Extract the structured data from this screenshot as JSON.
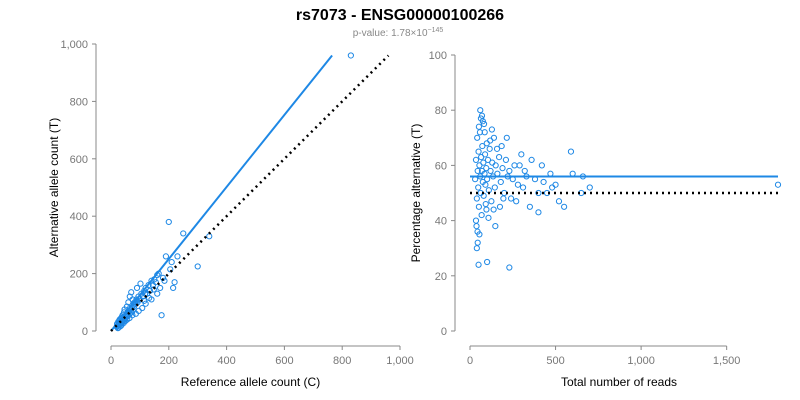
{
  "figure": {
    "title": "rs7073 - ENSG00000100266",
    "subtitle_prefix": "p-value: 1.78×10",
    "subtitle_exponent": "−145"
  },
  "colors": {
    "points": "#1e88e5",
    "fit_line": "#1e88e5",
    "reference_line": "#000000"
  },
  "chart_data": [
    {
      "type": "scatter",
      "title": "",
      "xlabel": "Reference allele count (C)",
      "ylabel": "Alternative allele count (T)",
      "xlim": [
        0,
        1000
      ],
      "ylim": [
        0,
        1000
      ],
      "xticks": [
        0,
        200,
        400,
        600,
        800,
        1000
      ],
      "xtick_labels": [
        "0",
        "200",
        "400",
        "600",
        "800",
        "1,000"
      ],
      "yticks": [
        0,
        200,
        400,
        600,
        800,
        1000
      ],
      "ytick_labels": [
        "0",
        "200",
        "400",
        "600",
        "800",
        "1,000"
      ],
      "grid": false,
      "points": [
        [
          20,
          15
        ],
        [
          22,
          18
        ],
        [
          25,
          20
        ],
        [
          28,
          25
        ],
        [
          30,
          22
        ],
        [
          33,
          30
        ],
        [
          35,
          28
        ],
        [
          38,
          35
        ],
        [
          40,
          30
        ],
        [
          42,
          40
        ],
        [
          45,
          38
        ],
        [
          48,
          45
        ],
        [
          50,
          42
        ],
        [
          52,
          55
        ],
        [
          55,
          50
        ],
        [
          58,
          60
        ],
        [
          60,
          55
        ],
        [
          62,
          70
        ],
        [
          65,
          60
        ],
        [
          68,
          75
        ],
        [
          70,
          65
        ],
        [
          72,
          80
        ],
        [
          75,
          70
        ],
        [
          78,
          90
        ],
        [
          80,
          85
        ],
        [
          82,
          100
        ],
        [
          85,
          95
        ],
        [
          88,
          110
        ],
        [
          90,
          105
        ],
        [
          95,
          120
        ],
        [
          100,
          110
        ],
        [
          105,
          130
        ],
        [
          110,
          120
        ],
        [
          115,
          140
        ],
        [
          120,
          150
        ],
        [
          125,
          130
        ],
        [
          130,
          160
        ],
        [
          135,
          140
        ],
        [
          140,
          175
        ],
        [
          145,
          160
        ],
        [
          150,
          180
        ],
        [
          155,
          170
        ],
        [
          160,
          195
        ],
        [
          170,
          150
        ],
        [
          180,
          185
        ],
        [
          190,
          260
        ],
        [
          200,
          380
        ],
        [
          210,
          240
        ],
        [
          220,
          170
        ],
        [
          230,
          260
        ],
        [
          250,
          340
        ],
        [
          300,
          225
        ],
        [
          340,
          330
        ],
        [
          830,
          960
        ],
        [
          60,
          100
        ],
        [
          45,
          65
        ],
        [
          40,
          55
        ],
        [
          35,
          45
        ],
        [
          30,
          40
        ],
        [
          25,
          32
        ],
        [
          24,
          10
        ],
        [
          26,
          12
        ],
        [
          32,
          16
        ],
        [
          36,
          20
        ],
        [
          44,
          28
        ],
        [
          50,
          35
        ],
        [
          56,
          40
        ],
        [
          64,
          45
        ],
        [
          74,
          55
        ],
        [
          86,
          60
        ],
        [
          96,
          70
        ],
        [
          108,
          80
        ],
        [
          120,
          95
        ],
        [
          140,
          110
        ],
        [
          160,
          130
        ],
        [
          175,
          55
        ],
        [
          115,
          105
        ],
        [
          65,
          120
        ],
        [
          75,
          110
        ],
        [
          90,
          150
        ],
        [
          102,
          165
        ],
        [
          118,
          130
        ],
        [
          132,
          115
        ],
        [
          148,
          145
        ],
        [
          165,
          200
        ],
        [
          185,
          175
        ],
        [
          205,
          215
        ],
        [
          215,
          150
        ],
        [
          70,
          135
        ],
        [
          55,
          85
        ],
        [
          47,
          75
        ],
        [
          38,
          50
        ],
        [
          29,
          35
        ],
        [
          21,
          25
        ],
        [
          27,
          28
        ],
        [
          43,
          48
        ],
        [
          57,
          65
        ],
        [
          66,
          80
        ],
        [
          79,
          95
        ],
        [
          92,
          100
        ]
      ],
      "series": [
        {
          "type": "fit",
          "x": [
            0,
            765
          ],
          "y": [
            0,
            960
          ]
        },
        {
          "type": "reference",
          "style": "dotted",
          "x": [
            0,
            960
          ],
          "y": [
            0,
            960
          ]
        }
      ]
    },
    {
      "type": "scatter",
      "title": "",
      "xlabel": "Total number of reads",
      "ylabel": "Percentage alternative (T)",
      "xlim": [
        0,
        1800
      ],
      "ylim": [
        0,
        100
      ],
      "xticks": [
        0,
        500,
        1000,
        1500
      ],
      "xtick_labels": [
        "0",
        "500",
        "1,000",
        "1,500"
      ],
      "yticks": [
        0,
        20,
        40,
        60,
        80,
        100
      ],
      "ytick_labels": [
        "0",
        "20",
        "40",
        "60",
        "80",
        "100"
      ],
      "grid": false,
      "points": [
        [
          30,
          55
        ],
        [
          35,
          62
        ],
        [
          40,
          48
        ],
        [
          42,
          70
        ],
        [
          45,
          58
        ],
        [
          48,
          52
        ],
        [
          50,
          65
        ],
        [
          52,
          45
        ],
        [
          55,
          60
        ],
        [
          58,
          72
        ],
        [
          60,
          56
        ],
        [
          62,
          50
        ],
        [
          65,
          63
        ],
        [
          68,
          42
        ],
        [
          70,
          58
        ],
        [
          72,
          67
        ],
        [
          75,
          54
        ],
        [
          78,
          61
        ],
        [
          80,
          49
        ],
        [
          82,
          75
        ],
        [
          85,
          57
        ],
        [
          88,
          64
        ],
        [
          90,
          53
        ],
        [
          92,
          46
        ],
        [
          95,
          59
        ],
        [
          98,
          68
        ],
        [
          100,
          55
        ],
        [
          105,
          62
        ],
        [
          110,
          51
        ],
        [
          115,
          66
        ],
        [
          120,
          58
        ],
        [
          125,
          47
        ],
        [
          130,
          61
        ],
        [
          135,
          56
        ],
        [
          140,
          70
        ],
        [
          145,
          52
        ],
        [
          150,
          60
        ],
        [
          160,
          57
        ],
        [
          170,
          63
        ],
        [
          180,
          54
        ],
        [
          190,
          59
        ],
        [
          200,
          50
        ],
        [
          210,
          62
        ],
        [
          220,
          56
        ],
        [
          240,
          48
        ],
        [
          260,
          60
        ],
        [
          280,
          53
        ],
        [
          300,
          64
        ],
        [
          320,
          58
        ],
        [
          350,
          45
        ],
        [
          380,
          55
        ],
        [
          400,
          43
        ],
        [
          420,
          60
        ],
        [
          450,
          50
        ],
        [
          500,
          53
        ],
        [
          520,
          47
        ],
        [
          550,
          45
        ],
        [
          590,
          65
        ],
        [
          600,
          57
        ],
        [
          700,
          52
        ],
        [
          1800,
          53
        ],
        [
          40,
          30
        ],
        [
          45,
          32
        ],
        [
          50,
          24
        ],
        [
          55,
          35
        ],
        [
          70,
          78
        ],
        [
          75,
          76
        ],
        [
          60,
          80
        ],
        [
          100,
          25
        ],
        [
          230,
          23
        ],
        [
          35,
          40
        ],
        [
          38,
          38
        ],
        [
          44,
          36
        ],
        [
          52,
          74
        ],
        [
          64,
          77
        ],
        [
          86,
          72
        ],
        [
          96,
          44
        ],
        [
          108,
          41
        ],
        [
          118,
          69
        ],
        [
          128,
          73
        ],
        [
          138,
          44
        ],
        [
          148,
          38
        ],
        [
          158,
          66
        ],
        [
          175,
          45
        ],
        [
          185,
          67
        ],
        [
          195,
          48
        ],
        [
          215,
          70
        ],
        [
          230,
          58
        ],
        [
          250,
          55
        ],
        [
          270,
          47
        ],
        [
          290,
          60
        ],
        [
          310,
          52
        ],
        [
          330,
          56
        ],
        [
          360,
          62
        ],
        [
          400,
          50
        ],
        [
          430,
          54
        ],
        [
          470,
          57
        ],
        [
          480,
          52
        ],
        [
          650,
          50
        ],
        [
          660,
          56
        ]
      ],
      "series": [
        {
          "type": "fit",
          "x": [
            0,
            1800
          ],
          "y": [
            56,
            56
          ]
        },
        {
          "type": "reference",
          "style": "dotted",
          "x": [
            0,
            1800
          ],
          "y": [
            50,
            50
          ]
        }
      ]
    }
  ]
}
